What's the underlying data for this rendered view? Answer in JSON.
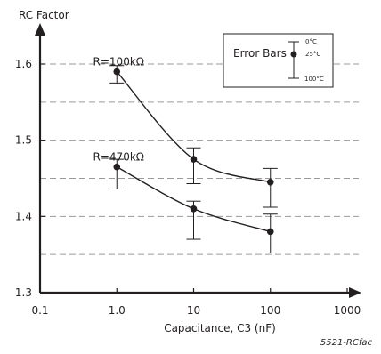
{
  "chart_data": {
    "type": "scatter",
    "title": "",
    "xlabel": "Capacitance, C3 (nF)",
    "ylabel": "RC Factor",
    "xscale": "log",
    "xlim": [
      0.1,
      1000
    ],
    "ylim": [
      1.3,
      1.65
    ],
    "x_ticks": [
      "0.1",
      "1.0",
      "10",
      "100",
      "1000"
    ],
    "x_tick_values": [
      0.1,
      1,
      10,
      100,
      1000
    ],
    "y_ticks": [
      "1.3",
      "1.4",
      "1.5",
      "1.6"
    ],
    "y_tick_values": [
      1.3,
      1.4,
      1.5,
      1.6
    ],
    "gridlines_y": [
      1.35,
      1.4,
      1.45,
      1.5,
      1.55,
      1.6
    ],
    "grid": "dashed horizontal",
    "series": [
      {
        "name": "R=100kΩ",
        "label_anchor": {
          "x": 1,
          "y": 1.59
        },
        "x": [
          1,
          10,
          100
        ],
        "y": [
          1.59,
          1.475,
          1.445
        ],
        "err_upper": [
          1.598,
          1.49,
          1.463
        ],
        "err_lower": [
          1.575,
          1.443,
          1.412
        ]
      },
      {
        "name": "R=470kΩ",
        "label_anchor": {
          "x": 1,
          "y": 1.465
        },
        "x": [
          1,
          10,
          100
        ],
        "y": [
          1.465,
          1.41,
          1.38
        ],
        "err_upper": [
          1.475,
          1.42,
          1.403
        ],
        "err_lower": [
          1.436,
          1.37,
          1.352
        ]
      }
    ],
    "legend": {
      "title": "Error Bars",
      "top": "0°C",
      "middle": "25°C",
      "bottom": "100°C",
      "placement": "top-right"
    },
    "figure_id": "5521-RCfac"
  }
}
